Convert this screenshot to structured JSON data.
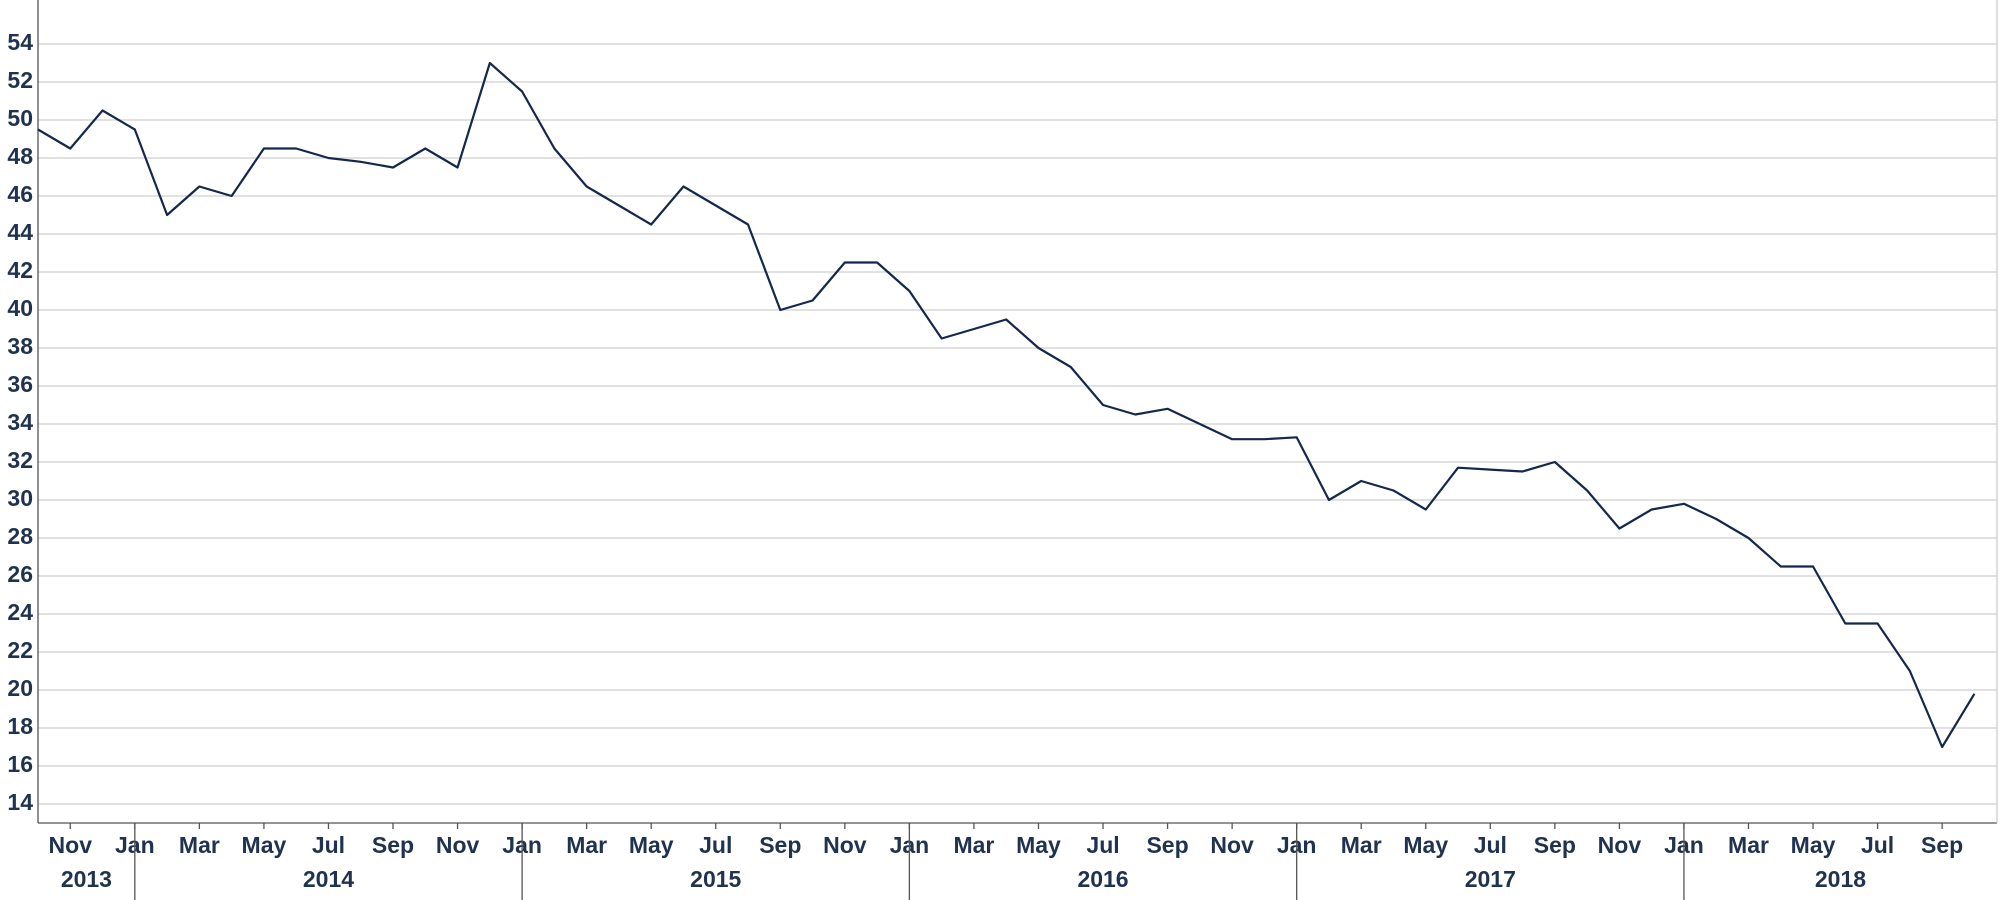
{
  "chart_data": {
    "type": "line",
    "color": "#14284b",
    "x": [
      "2013-10",
      "2013-11",
      "2013-12",
      "2014-01",
      "2014-02",
      "2014-03",
      "2014-04",
      "2014-05",
      "2014-06",
      "2014-07",
      "2014-08",
      "2014-09",
      "2014-10",
      "2014-11",
      "2014-12",
      "2015-01",
      "2015-02",
      "2015-03",
      "2015-04",
      "2015-05",
      "2015-06",
      "2015-07",
      "2015-08",
      "2015-09",
      "2015-10",
      "2015-11",
      "2015-12",
      "2016-01",
      "2016-02",
      "2016-03",
      "2016-04",
      "2016-05",
      "2016-06",
      "2016-07",
      "2016-08",
      "2016-09",
      "2016-10",
      "2016-11",
      "2016-12",
      "2017-01",
      "2017-02",
      "2017-03",
      "2017-04",
      "2017-05",
      "2017-06",
      "2017-07",
      "2017-08",
      "2017-09",
      "2017-10",
      "2017-11",
      "2017-12",
      "2018-01",
      "2018-02",
      "2018-03",
      "2018-04",
      "2018-05",
      "2018-06",
      "2018-07",
      "2018-08",
      "2018-09",
      "2018-10"
    ],
    "values": [
      49.5,
      48.5,
      50.5,
      49.5,
      45,
      46.5,
      46,
      48.5,
      48.5,
      48,
      47.8,
      47.5,
      48.5,
      47.5,
      53,
      51.5,
      48.5,
      46.5,
      45.5,
      44.5,
      46.5,
      45.5,
      44.5,
      40,
      40.5,
      42.5,
      42.5,
      41,
      38.5,
      39,
      39.5,
      38,
      37,
      35,
      34.5,
      34.8,
      34,
      33.2,
      33.2,
      33.3,
      30,
      31,
      30.5,
      29.5,
      31.7,
      31.6,
      31.5,
      32,
      30.5,
      28.5,
      29.5,
      29.8,
      29,
      28,
      26.5,
      26.5,
      23.5,
      23.5,
      21,
      17,
      19.8
    ],
    "xlim": [
      "2013-10",
      "2018-10"
    ],
    "xticks": [
      {
        "value": "2013-11",
        "label": "Nov"
      },
      {
        "value": "2014-01",
        "label": "Jan"
      },
      {
        "value": "2014-03",
        "label": "Mar"
      },
      {
        "value": "2014-05",
        "label": "May"
      },
      {
        "value": "2014-07",
        "label": "Jul"
      },
      {
        "value": "2014-09",
        "label": "Sep"
      },
      {
        "value": "2014-11",
        "label": "Nov"
      },
      {
        "value": "2015-01",
        "label": "Jan"
      },
      {
        "value": "2015-03",
        "label": "Mar"
      },
      {
        "value": "2015-05",
        "label": "May"
      },
      {
        "value": "2015-07",
        "label": "Jul"
      },
      {
        "value": "2015-09",
        "label": "Sep"
      },
      {
        "value": "2015-11",
        "label": "Nov"
      },
      {
        "value": "2016-01",
        "label": "Jan"
      },
      {
        "value": "2016-03",
        "label": "Mar"
      },
      {
        "value": "2016-05",
        "label": "May"
      },
      {
        "value": "2016-07",
        "label": "Jul"
      },
      {
        "value": "2016-09",
        "label": "Sep"
      },
      {
        "value": "2016-11",
        "label": "Nov"
      },
      {
        "value": "2017-01",
        "label": "Jan"
      },
      {
        "value": "2017-03",
        "label": "Mar"
      },
      {
        "value": "2017-05",
        "label": "May"
      },
      {
        "value": "2017-07",
        "label": "Jul"
      },
      {
        "value": "2017-09",
        "label": "Sep"
      },
      {
        "value": "2017-11",
        "label": "Nov"
      },
      {
        "value": "2018-01",
        "label": "Jan"
      },
      {
        "value": "2018-03",
        "label": "Mar"
      },
      {
        "value": "2018-05",
        "label": "May"
      },
      {
        "value": "2018-07",
        "label": "Jul"
      },
      {
        "value": "2018-09",
        "label": "Sep"
      }
    ],
    "year_labels": [
      "2013",
      "2014",
      "2015",
      "2016",
      "2017",
      "2018"
    ],
    "ylim": [
      13,
      56
    ],
    "yticks": [
      14,
      16,
      18,
      20,
      22,
      24,
      26,
      28,
      30,
      32,
      34,
      36,
      38,
      40,
      42,
      44,
      46,
      48,
      50,
      52,
      54
    ],
    "grid": true
  }
}
